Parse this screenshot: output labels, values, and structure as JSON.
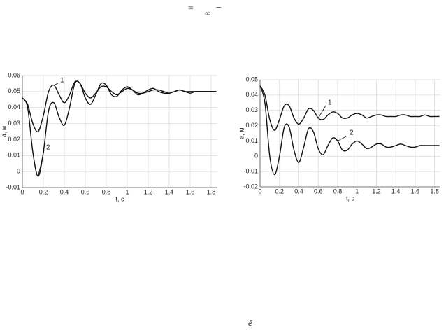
{
  "page_marks": [
    "=",
    "∞",
    "−"
  ],
  "footer_mark": "ē",
  "chart_data": [
    {
      "type": "line",
      "xlabel": "t, c",
      "ylabel": "a, м",
      "grid": true,
      "x": [
        0,
        0.05,
        0.1,
        0.15,
        0.2,
        0.25,
        0.3,
        0.35,
        0.4,
        0.45,
        0.5,
        0.55,
        0.6,
        0.65,
        0.7,
        0.75,
        0.8,
        0.85,
        0.9,
        0.95,
        1,
        1.05,
        1.1,
        1.15,
        1.2,
        1.25,
        1.3,
        1.35,
        1.4,
        1.45,
        1.5,
        1.55,
        1.6,
        1.65,
        1.7,
        1.75,
        1.8,
        1.85
      ],
      "xlim": [
        0,
        1.86
      ],
      "xticks": [
        0,
        0.2,
        0.4,
        0.6,
        0.8,
        1,
        1.2,
        1.4,
        1.6,
        1.8
      ],
      "ylim": [
        -0.01,
        0.06
      ],
      "yticks": [
        -0.01,
        0,
        0.01,
        0.02,
        0.03,
        0.04,
        0.05,
        0.06
      ],
      "series": [
        {
          "name": "1",
          "color": "#111111",
          "values": [
            0.046,
            0.042,
            0.03,
            0.025,
            0.035,
            0.05,
            0.054,
            0.048,
            0.043,
            0.048,
            0.056,
            0.055,
            0.049,
            0.046,
            0.049,
            0.053,
            0.053,
            0.05,
            0.048,
            0.05,
            0.052,
            0.051,
            0.049,
            0.049,
            0.05,
            0.051,
            0.051,
            0.05,
            0.049,
            0.05,
            0.051,
            0.05,
            0.05,
            0.05,
            0.05,
            0.05,
            0.05,
            0.05
          ]
        },
        {
          "name": "2",
          "color": "#111111",
          "values": [
            0.046,
            0.04,
            0.012,
            -0.003,
            0.012,
            0.038,
            0.043,
            0.034,
            0.029,
            0.04,
            0.055,
            0.055,
            0.046,
            0.042,
            0.048,
            0.055,
            0.054,
            0.048,
            0.047,
            0.051,
            0.053,
            0.051,
            0.048,
            0.049,
            0.051,
            0.052,
            0.05,
            0.049,
            0.049,
            0.05,
            0.051,
            0.05,
            0.049,
            0.05,
            0.05,
            0.05,
            0.05,
            0.05
          ]
        }
      ]
    },
    {
      "type": "line",
      "xlabel": "t, c",
      "ylabel": "a, м",
      "grid": true,
      "x": [
        0,
        0.05,
        0.1,
        0.15,
        0.2,
        0.25,
        0.3,
        0.35,
        0.4,
        0.45,
        0.5,
        0.55,
        0.6,
        0.65,
        0.7,
        0.75,
        0.8,
        0.85,
        0.9,
        0.95,
        1,
        1.05,
        1.1,
        1.15,
        1.2,
        1.25,
        1.3,
        1.35,
        1.4,
        1.45,
        1.5,
        1.55,
        1.6,
        1.65,
        1.7,
        1.75,
        1.8,
        1.85
      ],
      "xlim": [
        0,
        1.86
      ],
      "xticks": [
        0,
        0.2,
        0.4,
        0.6,
        0.8,
        1,
        1.2,
        1.4,
        1.6,
        1.8
      ],
      "ylim": [
        -0.02,
        0.05
      ],
      "yticks": [
        -0.02,
        -0.01,
        0,
        0.01,
        0.02,
        0.03,
        0.04,
        0.05
      ],
      "series": [
        {
          "name": "1",
          "color": "#111111",
          "values": [
            0.046,
            0.04,
            0.024,
            0.017,
            0.024,
            0.033,
            0.033,
            0.025,
            0.021,
            0.025,
            0.031,
            0.03,
            0.025,
            0.024,
            0.027,
            0.029,
            0.028,
            0.025,
            0.025,
            0.027,
            0.028,
            0.027,
            0.025,
            0.026,
            0.027,
            0.027,
            0.026,
            0.026,
            0.026,
            0.027,
            0.027,
            0.026,
            0.026,
            0.026,
            0.027,
            0.026,
            0.026,
            0.026
          ]
        },
        {
          "name": "2",
          "color": "#111111",
          "values": [
            0.046,
            0.035,
            0.0,
            -0.012,
            0.0,
            0.019,
            0.019,
            0.004,
            -0.004,
            0.006,
            0.018,
            0.016,
            0.005,
            0.001,
            0.007,
            0.012,
            0.01,
            0.004,
            0.004,
            0.008,
            0.01,
            0.008,
            0.005,
            0.006,
            0.008,
            0.008,
            0.006,
            0.006,
            0.007,
            0.008,
            0.007,
            0.006,
            0.006,
            0.007,
            0.007,
            0.007,
            0.007,
            0.007
          ]
        }
      ]
    }
  ]
}
